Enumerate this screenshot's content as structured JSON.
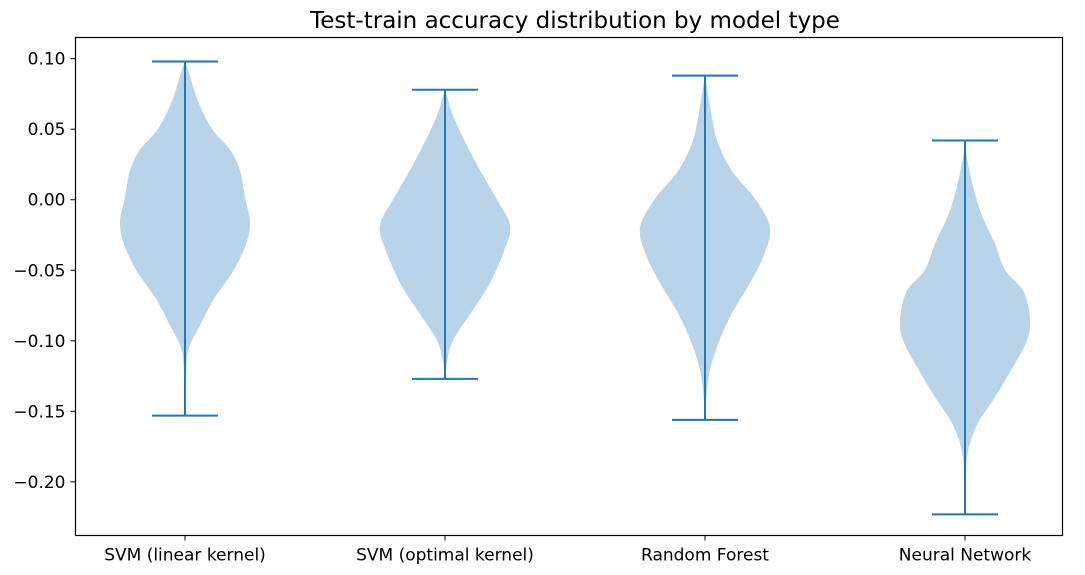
{
  "chart_data": {
    "type": "violin",
    "title": "Test-train accuracy distribution by model type",
    "xlabel": "",
    "ylabel": "",
    "ylim": [
      -0.238,
      0.115
    ],
    "yticks": [
      0.1,
      0.05,
      0.0,
      -0.05,
      -0.1,
      -0.15,
      -0.2
    ],
    "ytick_labels": [
      "0.10",
      "0.05",
      "0.00",
      "−0.05",
      "−0.10",
      "−0.15",
      "−0.20"
    ],
    "grid": false,
    "colors": {
      "violin_fill": "#b9d4e8",
      "line": "#1f77b4",
      "axis": "#000000"
    },
    "categories": [
      "SVM (linear kernel)",
      "SVM (optimal kernel)",
      "Random Forest",
      "Neural Network"
    ],
    "series": [
      {
        "min": -0.153,
        "max": 0.098,
        "profile": [
          [
            -0.153,
            0
          ],
          [
            -0.12,
            0.02
          ],
          [
            -0.105,
            0.06
          ],
          [
            -0.09,
            0.22
          ],
          [
            -0.07,
            0.45
          ],
          [
            -0.05,
            0.75
          ],
          [
            -0.03,
            0.95
          ],
          [
            -0.015,
            1.0
          ],
          [
            0.0,
            0.93
          ],
          [
            0.02,
            0.85
          ],
          [
            0.035,
            0.7
          ],
          [
            0.05,
            0.42
          ],
          [
            0.07,
            0.2
          ],
          [
            0.09,
            0.06
          ],
          [
            0.098,
            0
          ]
        ]
      },
      {
        "min": -0.127,
        "max": 0.078,
        "profile": [
          [
            -0.127,
            0
          ],
          [
            -0.115,
            0.03
          ],
          [
            -0.1,
            0.12
          ],
          [
            -0.08,
            0.4
          ],
          [
            -0.06,
            0.68
          ],
          [
            -0.035,
            0.92
          ],
          [
            -0.018,
            1.0
          ],
          [
            0.0,
            0.8
          ],
          [
            0.02,
            0.55
          ],
          [
            0.04,
            0.32
          ],
          [
            0.06,
            0.12
          ],
          [
            0.072,
            0.04
          ],
          [
            0.078,
            0
          ]
        ]
      },
      {
        "min": -0.156,
        "max": 0.088,
        "profile": [
          [
            -0.156,
            0
          ],
          [
            -0.14,
            0.02
          ],
          [
            -0.12,
            0.08
          ],
          [
            -0.1,
            0.22
          ],
          [
            -0.08,
            0.42
          ],
          [
            -0.06,
            0.68
          ],
          [
            -0.04,
            0.9
          ],
          [
            -0.02,
            1.0
          ],
          [
            0.0,
            0.78
          ],
          [
            0.02,
            0.42
          ],
          [
            0.04,
            0.2
          ],
          [
            0.06,
            0.1
          ],
          [
            0.08,
            0.03
          ],
          [
            0.088,
            0
          ]
        ]
      },
      {
        "min": -0.223,
        "max": 0.042,
        "profile": [
          [
            -0.223,
            0
          ],
          [
            -0.2,
            0.015
          ],
          [
            -0.18,
            0.04
          ],
          [
            -0.16,
            0.18
          ],
          [
            -0.14,
            0.46
          ],
          [
            -0.12,
            0.72
          ],
          [
            -0.1,
            0.95
          ],
          [
            -0.085,
            1.0
          ],
          [
            -0.065,
            0.9
          ],
          [
            -0.05,
            0.62
          ],
          [
            -0.03,
            0.45
          ],
          [
            -0.01,
            0.25
          ],
          [
            0.01,
            0.12
          ],
          [
            0.03,
            0.03
          ],
          [
            0.042,
            0
          ]
        ]
      }
    ]
  }
}
